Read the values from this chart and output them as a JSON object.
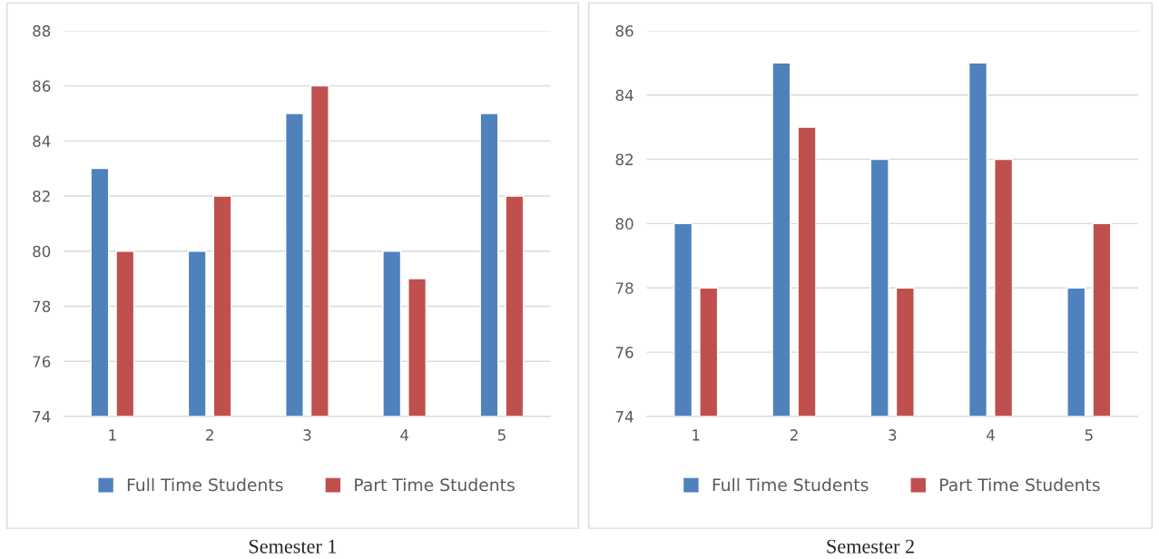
{
  "chart_data": [
    {
      "type": "bar",
      "title": "Semester 1",
      "categories": [
        "1",
        "2",
        "3",
        "4",
        "5"
      ],
      "series": [
        {
          "name": "Full Time Students",
          "color": "#4f81bd",
          "values": [
            83,
            80,
            85,
            80,
            85
          ]
        },
        {
          "name": "Part Time Students",
          "color": "#c0504d",
          "values": [
            80,
            82,
            86,
            79,
            82
          ]
        }
      ],
      "ylim": [
        74,
        88
      ],
      "yticks": [
        74,
        76,
        78,
        80,
        82,
        84,
        86,
        88
      ],
      "grid": "y",
      "legend": "bottom"
    },
    {
      "type": "bar",
      "title": "Semester 2",
      "categories": [
        "1",
        "2",
        "3",
        "4",
        "5"
      ],
      "series": [
        {
          "name": "Full Time Students",
          "color": "#4f81bd",
          "values": [
            80,
            85,
            82,
            85,
            78
          ]
        },
        {
          "name": "Part Time Students",
          "color": "#c0504d",
          "values": [
            78,
            83,
            78,
            82,
            80
          ]
        }
      ],
      "ylim": [
        74,
        86
      ],
      "yticks": [
        74,
        76,
        78,
        80,
        82,
        84,
        86
      ],
      "grid": "y",
      "legend": "bottom"
    }
  ]
}
